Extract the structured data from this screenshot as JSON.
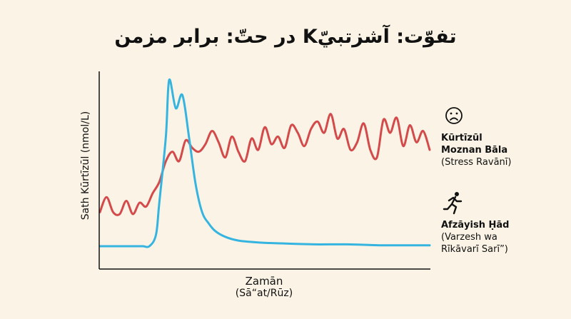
{
  "title": "تفوّت: آشزتبيّK در حتّ: برابر مزمن",
  "chart_data": {
    "type": "line",
    "title": "تفوّت: آشزتبيّK در حتّ: برابر مزمن",
    "xlabel": "Zamān",
    "xlabel_sub": "(Sā“at/Rūz)",
    "ylabel": "Sath Kūrtīzūl (nmol/L)",
    "grid": false,
    "legend_placement": "right",
    "x_ticks": [],
    "y_ticks": [],
    "series": [
      {
        "key": "stress",
        "color": "#d44a4a",
        "x": [
          0,
          2,
          4,
          6,
          8,
          10,
          12,
          14,
          16,
          18,
          20,
          22,
          24,
          26,
          28,
          30,
          32,
          34,
          36,
          38,
          40,
          42,
          44,
          46,
          48,
          50,
          52,
          54,
          56,
          58,
          60,
          62,
          64,
          66,
          68,
          70,
          72,
          74,
          76,
          78,
          80,
          82,
          84,
          86,
          88,
          90,
          92,
          94,
          96,
          98,
          100
        ],
        "y": [
          30,
          38,
          30,
          29,
          36,
          29,
          35,
          33,
          40,
          46,
          57,
          62,
          57,
          68,
          64,
          62,
          66,
          73,
          67,
          59,
          70,
          62,
          57,
          69,
          63,
          75,
          66,
          70,
          64,
          76,
          72,
          65,
          74,
          78,
          72,
          82,
          69,
          74,
          63,
          67,
          77,
          63,
          59,
          79,
          72,
          80,
          65,
          76,
          67,
          73,
          63
        ]
      },
      {
        "key": "exercise",
        "color": "#36b4e0",
        "x": [
          0,
          5,
          10,
          13,
          15,
          17,
          18,
          20,
          21,
          23,
          25,
          27,
          29,
          31,
          33,
          35,
          38,
          42,
          48,
          55,
          65,
          75,
          85,
          95,
          100
        ],
        "y": [
          12,
          12,
          12,
          12,
          12,
          18,
          35,
          70,
          100,
          85,
          92,
          70,
          45,
          30,
          24,
          20,
          17,
          15,
          14,
          13.5,
          13,
          13,
          12.5,
          12.5,
          12.5
        ]
      }
    ],
    "legend": [
      {
        "key": "stress",
        "icon": "sad-face-icon",
        "label_bold": [
          "Kūrtīzūl",
          "Moznan Bāla"
        ],
        "label_sub": [
          "(Stress Ravānī)"
        ]
      },
      {
        "key": "exercise",
        "icon": "running-person-icon",
        "label_bold": [
          "Afzāyish Ḥād"
        ],
        "label_sub": [
          "(Varzesh wa",
          "Rīkāvarī Sarī”)"
        ]
      }
    ]
  }
}
